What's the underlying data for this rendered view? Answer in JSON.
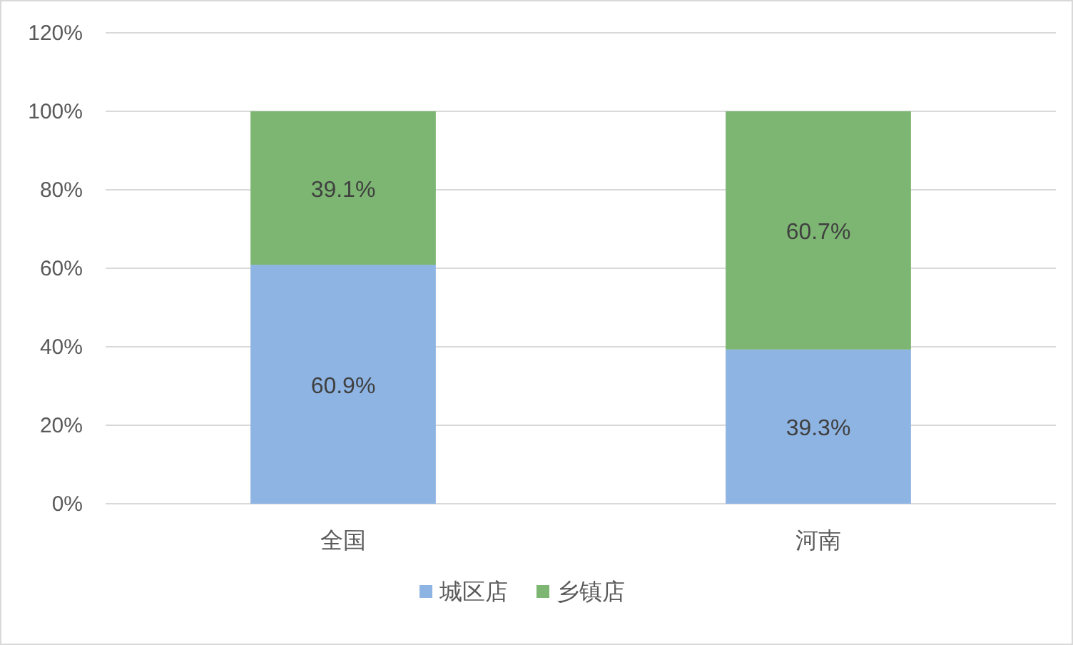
{
  "chart_data": {
    "type": "bar",
    "stacked": true,
    "categories": [
      "全国",
      "河南"
    ],
    "series": [
      {
        "name": "城区店",
        "color": "#8eb4e3",
        "values": [
          60.9,
          39.3
        ],
        "value_labels": [
          "60.9%",
          "39.3%"
        ]
      },
      {
        "name": "乡镇店",
        "color": "#7db672",
        "values": [
          39.1,
          60.7
        ],
        "value_labels": [
          "39.1%",
          "60.7%"
        ]
      }
    ],
    "ylim": [
      0,
      120
    ],
    "yticks": [
      {
        "value": 0,
        "label": "0%"
      },
      {
        "value": 20,
        "label": "20%"
      },
      {
        "value": 40,
        "label": "40%"
      },
      {
        "value": 60,
        "label": "60%"
      },
      {
        "value": 80,
        "label": "80%"
      },
      {
        "value": 100,
        "label": "100%"
      },
      {
        "value": 120,
        "label": "120%"
      }
    ],
    "grid": "y",
    "legend": "bottom"
  }
}
